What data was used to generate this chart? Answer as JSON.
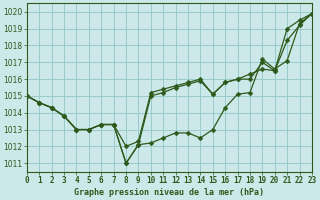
{
  "title": "Graphe pression niveau de la mer (hPa)",
  "background_color": "#cce8e8",
  "grid_color": "#99cccc",
  "line_color": "#2d5a1b",
  "xlim": [
    0,
    23
  ],
  "ylim": [
    1010.5,
    1020.5
  ],
  "yticks": [
    1011,
    1012,
    1013,
    1014,
    1015,
    1016,
    1017,
    1018,
    1019,
    1020
  ],
  "xticks": [
    0,
    1,
    2,
    3,
    4,
    5,
    6,
    7,
    8,
    9,
    10,
    11,
    12,
    13,
    14,
    15,
    16,
    17,
    18,
    19,
    20,
    21,
    22,
    23
  ],
  "series": [
    [
      1015.0,
      1014.6,
      1014.3,
      1013.8,
      1013.0,
      1013.0,
      1013.3,
      1013.3,
      1011.0,
      1012.1,
      1012.2,
      1012.5,
      1012.8,
      1012.8,
      1012.5,
      1013.0,
      1014.3,
      1015.1,
      1015.2,
      1017.2,
      1016.6,
      1017.1,
      1019.3,
      1019.9
    ],
    [
      1015.0,
      1014.6,
      1014.3,
      1013.8,
      1013.0,
      1013.0,
      1013.3,
      1013.3,
      1012.0,
      1012.3,
      1015.2,
      1015.4,
      1015.6,
      1015.8,
      1016.0,
      1015.1,
      1015.8,
      1016.0,
      1016.3,
      1016.6,
      1016.5,
      1019.0,
      1019.5,
      1019.9
    ],
    [
      1015.0,
      1014.6,
      1014.3,
      1013.8,
      1013.0,
      1013.0,
      1013.3,
      1013.3,
      1011.0,
      1012.1,
      1015.0,
      1015.2,
      1015.5,
      1015.7,
      1015.9,
      1015.1,
      1015.8,
      1016.0,
      1016.0,
      1017.0,
      1016.5,
      1018.3,
      1019.2,
      1019.9
    ]
  ],
  "ylabel_fontsize": 5.5,
  "xlabel_fontsize": 6.0,
  "tick_fontsize": 5.5,
  "marker_size": 2.5,
  "line_width": 0.9
}
